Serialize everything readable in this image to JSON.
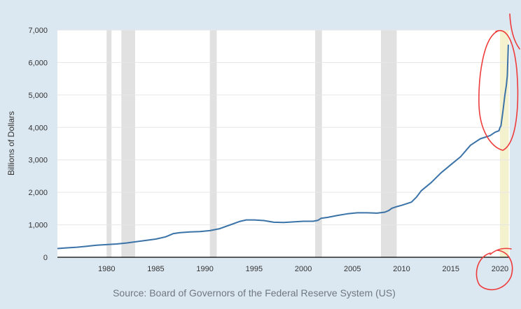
{
  "chart_data": {
    "type": "line",
    "title": "",
    "xlabel": "",
    "ylabel": "Billions of Dollars",
    "source": "Source: Board of Governors of the Federal Reserve System (US)",
    "xlim": [
      1975,
      2021
    ],
    "ylim": [
      0,
      7000
    ],
    "y_ticks": [
      0,
      1000,
      2000,
      3000,
      4000,
      5000,
      6000,
      7000
    ],
    "y_tick_labels": [
      "0",
      "1,000",
      "2,000",
      "3,000",
      "4,000",
      "5,000",
      "6,000",
      "7,000"
    ],
    "x_ticks": [
      1980,
      1985,
      1990,
      1995,
      2000,
      2005,
      2010,
      2015,
      2020
    ],
    "x_tick_labels": [
      "1980",
      "1985",
      "1990",
      "1995",
      "2000",
      "2005",
      "2010",
      "2015",
      "2020"
    ],
    "grid": "horizontal",
    "legend": "none",
    "recessions": [
      [
        1980.0,
        1980.5
      ],
      [
        1981.5,
        1982.9
      ],
      [
        1990.5,
        1991.2
      ],
      [
        2001.2,
        2001.9
      ],
      [
        2007.9,
        2009.5
      ]
    ],
    "highlight_period": [
      2020.0,
      2020.9
    ],
    "series": [
      {
        "color": "#3b73a8",
        "x": [
          1975.0,
          1976.0,
          1977.0,
          1978.0,
          1979.0,
          1980.0,
          1981.0,
          1982.0,
          1983.0,
          1984.0,
          1985.0,
          1986.0,
          1986.8,
          1987.5,
          1988.5,
          1989.5,
          1990.5,
          1991.5,
          1992.5,
          1993.5,
          1994.2,
          1995.0,
          1996.0,
          1997.0,
          1998.0,
          1999.0,
          2000.0,
          2001.0,
          2001.5,
          2001.8,
          2002.5,
          2003.5,
          2004.5,
          2005.5,
          2006.5,
          2007.5,
          2008.3,
          2008.7,
          2009.0,
          2009.5,
          2010.0,
          2010.5,
          2011.0,
          2011.5,
          2012.0,
          2013.0,
          2014.0,
          2015.0,
          2016.0,
          2017.0,
          2018.0,
          2019.0,
          2019.5,
          2019.9,
          2020.0,
          2020.1,
          2020.3,
          2020.5,
          2020.65,
          2020.75,
          2020.85
        ],
        "y": [
          270,
          290,
          310,
          340,
          370,
          390,
          410,
          440,
          480,
          520,
          560,
          630,
          730,
          760,
          780,
          790,
          820,
          880,
          990,
          1100,
          1150,
          1150,
          1130,
          1080,
          1070,
          1090,
          1110,
          1110,
          1140,
          1200,
          1230,
          1290,
          1340,
          1370,
          1370,
          1360,
          1390,
          1440,
          1510,
          1560,
          1600,
          1650,
          1700,
          1850,
          2050,
          2300,
          2600,
          2850,
          3100,
          3450,
          3650,
          3750,
          3850,
          3900,
          4000,
          4050,
          4500,
          5000,
          5300,
          5600,
          6550
        ]
      }
    ]
  }
}
